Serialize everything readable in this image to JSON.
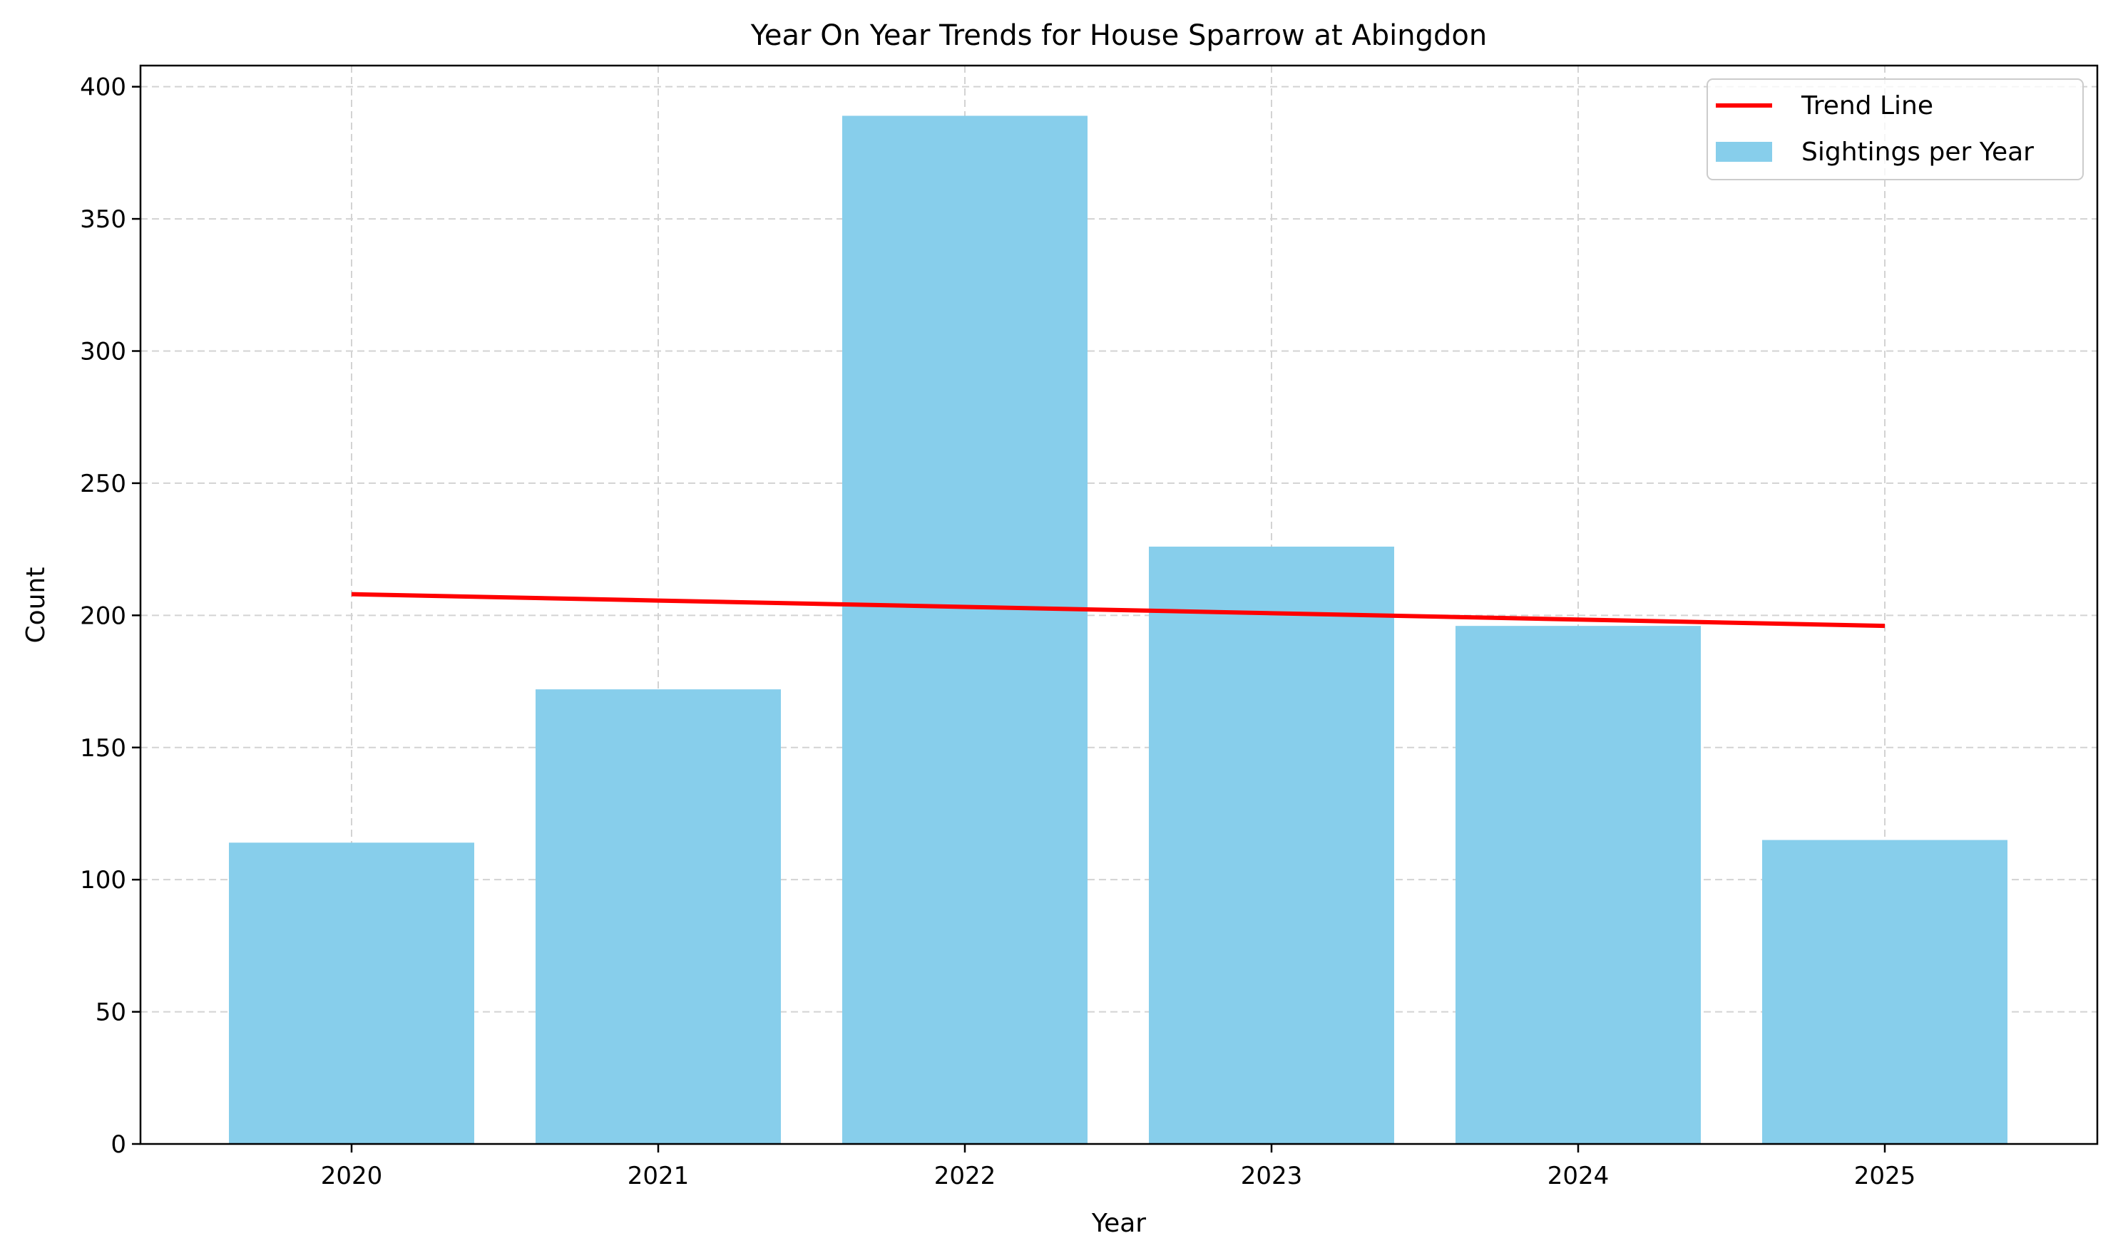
{
  "chart_data": {
    "type": "bar",
    "title": "Year On Year Trends for House Sparrow at Abingdon",
    "xlabel": "Year",
    "ylabel": "Count",
    "categories": [
      "2020",
      "2021",
      "2022",
      "2023",
      "2024",
      "2025"
    ],
    "series": [
      {
        "name": "Sightings per Year",
        "type": "bar",
        "values": [
          114,
          172,
          389,
          226,
          196,
          115
        ],
        "color": "#87CEEB"
      },
      {
        "name": "Trend Line",
        "type": "line",
        "values": [
          208,
          205.6,
          203.2,
          200.8,
          198.4,
          196
        ],
        "color": "#FF0000"
      }
    ],
    "ylim": [
      0,
      408
    ],
    "yticks": [
      0,
      50,
      100,
      150,
      200,
      250,
      300,
      350,
      400
    ],
    "grid": true,
    "legend": "top-right",
    "legend_order": [
      "Trend Line",
      "Sightings per Year"
    ]
  }
}
